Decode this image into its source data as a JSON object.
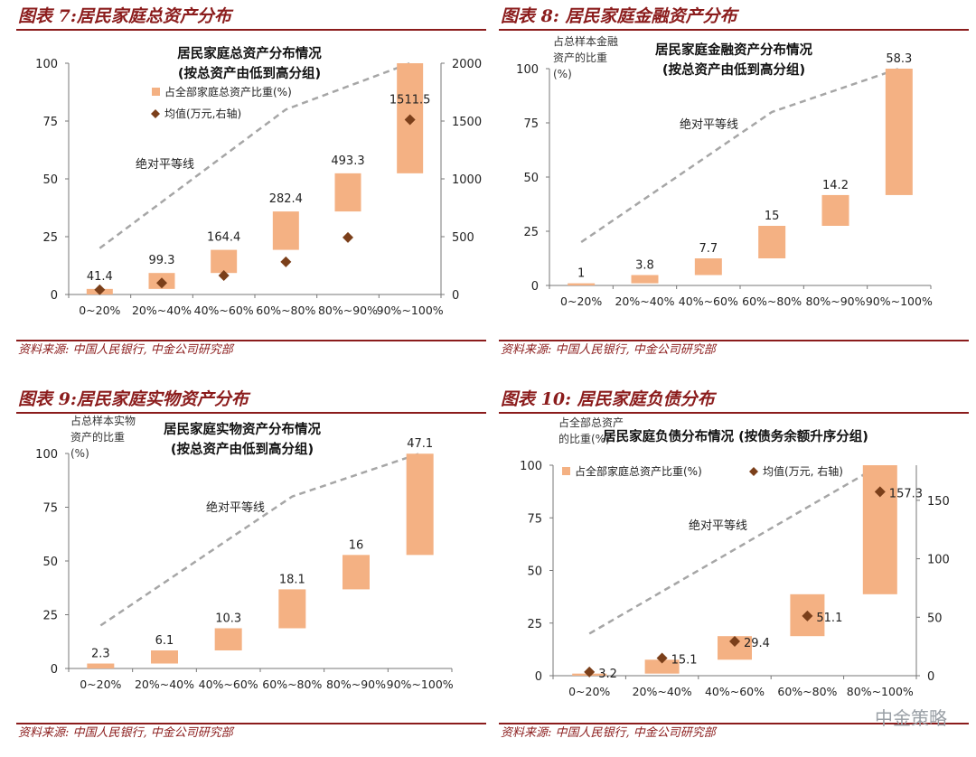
{
  "watermark": "中金策略",
  "chart_data": [
    {
      "type": "bar",
      "figure_title": "图表 7:居民家庭总资产分布",
      "title": "居民家庭总资产分布情况",
      "subtitle": "(按总资产由低到高分组)",
      "source": "资料来源: 中国人民银行, 中金公司研究部",
      "ylabel": "",
      "categories": [
        "0~20%",
        "20%~40%",
        "40%~60%",
        "60%~80%",
        "80%~90%",
        "90%~100%"
      ],
      "bar_start": [
        0,
        2.4,
        9.3,
        19.3,
        35.9,
        52.4
      ],
      "bar_share": [
        2.4,
        6.9,
        10.0,
        16.6,
        16.5,
        47.6
      ],
      "mean_values": [
        41.4,
        99.3,
        164.4,
        282.4,
        493.3,
        1511.5
      ],
      "mean_labels": [
        "41.4",
        "99.3",
        "164.4",
        "282.4",
        "493.3",
        "1511.5"
      ],
      "equality_line": [
        20,
        40,
        60,
        80,
        90,
        100
      ],
      "legend": [
        "占全部家庭总资产比重(%)",
        "均值(万元,右轴)"
      ],
      "annotation": "绝对平等线",
      "ylim": [
        0,
        100
      ],
      "yticks": [
        0,
        25,
        50,
        75,
        100
      ],
      "y2lim": [
        0,
        2000
      ],
      "y2ticks": [
        0,
        500,
        1000,
        1500,
        2000
      ]
    },
    {
      "type": "bar",
      "figure_title": "图表 8: 居民家庭金融资产分布",
      "title": "居民家庭金融资产分布情况",
      "subtitle": "(按总资产由低到高分组)",
      "source": "资料来源: 中国人民银行, 中金公司研究部",
      "ylabel": "占总样本金融资产的比重(%)",
      "categories": [
        "0~20%",
        "20%~40%",
        "40%~60%",
        "60%~80%",
        "80%~90%",
        "90%~100%"
      ],
      "bar_start": [
        0,
        1.0,
        4.8,
        12.5,
        27.5,
        41.7
      ],
      "bar_share": [
        1,
        3.8,
        7.7,
        15,
        14.2,
        58.3
      ],
      "labels": [
        "1",
        "3.8",
        "7.7",
        "15",
        "14.2",
        "58.3"
      ],
      "equality_line": [
        20,
        40,
        60,
        80,
        90,
        100
      ],
      "annotation": "绝对平等线",
      "ylim": [
        0,
        100
      ],
      "yticks": [
        0,
        25,
        50,
        75,
        100
      ]
    },
    {
      "type": "bar",
      "figure_title": "图表 9:居民家庭实物资产分布",
      "title": "居民家庭实物资产分布情况",
      "subtitle": "(按总资产由低到高分组)",
      "source": "资料来源: 中国人民银行, 中金公司研究部",
      "ylabel": "占总样本实物资产的比重(%)",
      "categories": [
        "0~20%",
        "20%~40%",
        "40%~60%",
        "60%~80%",
        "80%~90%",
        "90%~100%"
      ],
      "bar_start": [
        0,
        2.3,
        8.4,
        18.7,
        36.8,
        52.8
      ],
      "bar_share": [
        2.3,
        6.1,
        10.3,
        18.1,
        16,
        47.1
      ],
      "labels": [
        "2.3",
        "6.1",
        "10.3",
        "18.1",
        "16",
        "47.1"
      ],
      "equality_line": [
        20,
        40,
        60,
        80,
        90,
        100
      ],
      "annotation": "绝对平等线",
      "ylim": [
        0,
        100
      ],
      "yticks": [
        0,
        25,
        50,
        75,
        100
      ]
    },
    {
      "type": "bar",
      "figure_title": "图表 10: 居民家庭负债分布",
      "title": "居民家庭负债分布情况 (按债务余额升序分组)",
      "subtitle": "",
      "source": "资料来源: 中国人民银行, 中金公司研究部",
      "ylabel": "占全部总资产的比重(%)",
      "categories": [
        "0~20%",
        "20%~40%",
        "40%~60%",
        "60%~80%",
        "80%~100%"
      ],
      "bar_start": [
        0,
        1.0,
        7.6,
        18.8,
        38.7
      ],
      "bar_share": [
        1.0,
        6.6,
        11.2,
        19.9,
        61.3
      ],
      "mean_values": [
        3.2,
        15.1,
        29.4,
        51.1,
        157.3
      ],
      "mean_labels": [
        "3.2",
        "15.1",
        "29.4",
        "51.1",
        "157.3"
      ],
      "equality_line": [
        20,
        40,
        60,
        80,
        100
      ],
      "legend": [
        "占全部家庭总资产比重(%)",
        "均值(万元, 右轴)"
      ],
      "annotation": "绝对平等线",
      "ylim": [
        0,
        100
      ],
      "yticks": [
        0,
        25,
        50,
        75,
        100
      ],
      "y2lim": [
        0,
        180
      ],
      "y2ticks": [
        0,
        50,
        100,
        150
      ]
    }
  ]
}
